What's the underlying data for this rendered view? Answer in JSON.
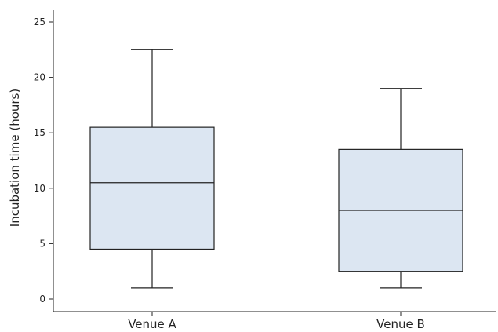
{
  "chart_data": {
    "type": "box",
    "title": "",
    "xlabel": "",
    "ylabel": "Incubation time (hours)",
    "ylim": [
      0,
      25
    ],
    "yticks": [
      0,
      5,
      10,
      15,
      20,
      25
    ],
    "categories": [
      "Venue A",
      "Venue B"
    ],
    "boxes": [
      {
        "category": "Venue A",
        "min": 1,
        "q1": 4.5,
        "median": 10.5,
        "q3": 15.5,
        "max": 22.5
      },
      {
        "category": "Venue B",
        "min": 1,
        "q1": 2.5,
        "median": 8,
        "q3": 13.5,
        "max": 19
      }
    ],
    "box_fill": "#dce6f2",
    "line_color": "#222222",
    "grid": false,
    "legend": "none"
  }
}
